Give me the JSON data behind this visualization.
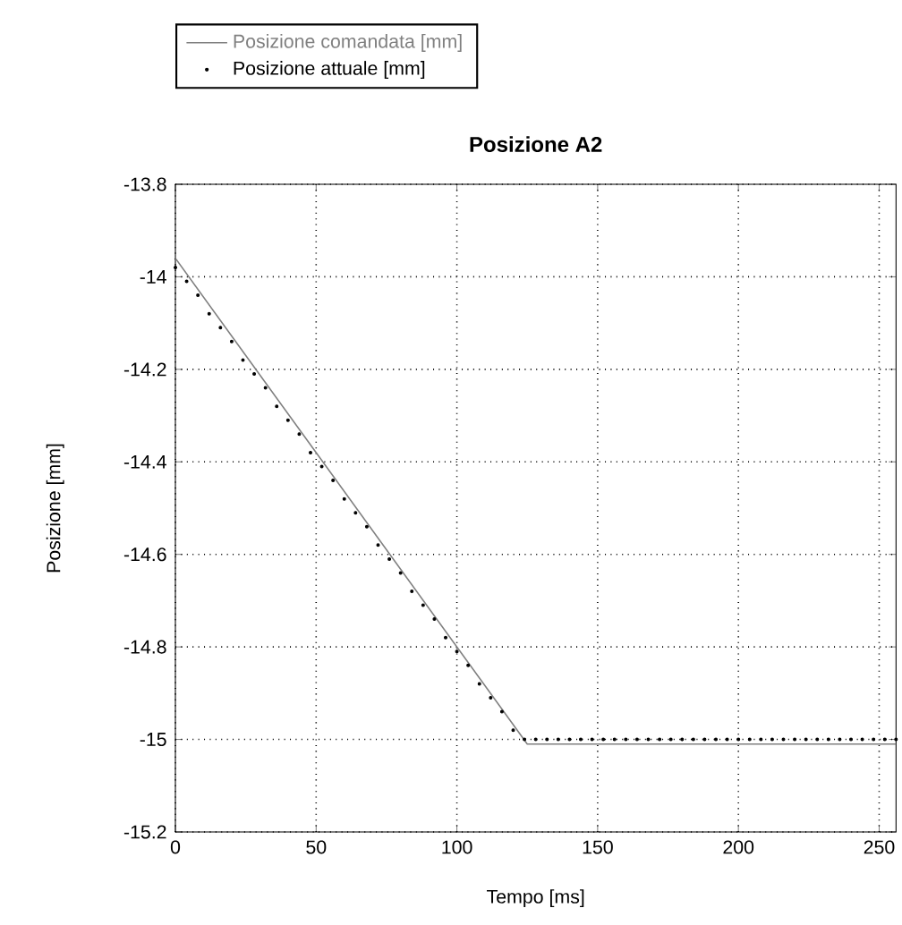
{
  "chart_data": {
    "type": "line",
    "title": "Posizione A2",
    "xlabel": "Tempo [ms]",
    "ylabel": "Posizione [mm]",
    "xlim": [
      0,
      256
    ],
    "ylim": [
      -15.2,
      -13.8
    ],
    "xticks": [
      0,
      50,
      100,
      150,
      200,
      250
    ],
    "yticks": [
      -15.2,
      -15,
      -14.8,
      -14.6,
      -14.4,
      -14.2,
      -14,
      -13.8
    ],
    "grid": true,
    "legend": "top left",
    "series": [
      {
        "name": "Posizione comandata [mm]",
        "color": "#808080",
        "marker": "none",
        "line_style": "solid",
        "x": [
          0,
          125,
          256
        ],
        "values": [
          -13.96,
          -15.01,
          -15.01
        ]
      },
      {
        "name": "Posizione attuale [mm]",
        "color": "#000000",
        "type": "scatter",
        "marker": "circle",
        "x": [
          0,
          4,
          8,
          12,
          16,
          20,
          24,
          28,
          32,
          36,
          40,
          44,
          48,
          52,
          56,
          60,
          64,
          68,
          72,
          76,
          80,
          84,
          88,
          92,
          96,
          100,
          104,
          108,
          112,
          116,
          120,
          124,
          128,
          132,
          136,
          140,
          144,
          148,
          152,
          156,
          160,
          164,
          168,
          172,
          176,
          180,
          184,
          188,
          192,
          196,
          200,
          204,
          208,
          212,
          216,
          220,
          224,
          228,
          232,
          236,
          240,
          244,
          248,
          252,
          256
        ],
        "values": [
          -13.98,
          -14.01,
          -14.04,
          -14.08,
          -14.11,
          -14.14,
          -14.18,
          -14.21,
          -14.24,
          -14.28,
          -14.31,
          -14.34,
          -14.38,
          -14.41,
          -14.44,
          -14.48,
          -14.51,
          -14.54,
          -14.58,
          -14.61,
          -14.64,
          -14.68,
          -14.71,
          -14.74,
          -14.78,
          -14.81,
          -14.84,
          -14.88,
          -14.91,
          -14.94,
          -14.98,
          -15.0,
          -15.0,
          -15.0,
          -15.0,
          -15.0,
          -15.0,
          -15.0,
          -15.0,
          -15.0,
          -15.0,
          -15.0,
          -15.0,
          -15.0,
          -15.0,
          -15.0,
          -15.0,
          -15.0,
          -15.0,
          -15.0,
          -15.0,
          -15.0,
          -15.0,
          -15.0,
          -15.0,
          -15.0,
          -15.0,
          -15.0,
          -15.0,
          -15.0,
          -15.0,
          -15.0,
          -15.0,
          -15.0,
          -15.0
        ]
      }
    ]
  }
}
